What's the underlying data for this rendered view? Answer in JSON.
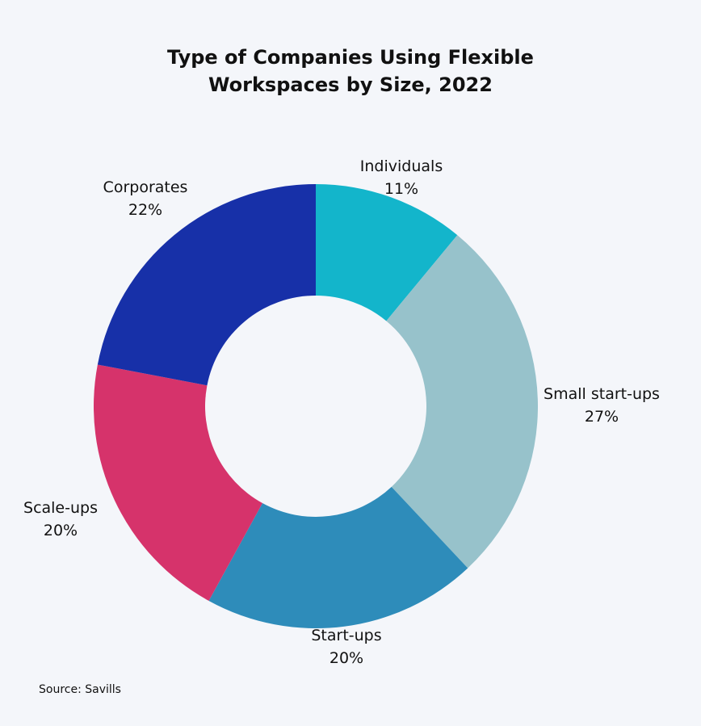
{
  "chart_data": {
    "type": "pie",
    "variant": "donut",
    "title": "Type of Companies Using Flexible Workspaces by Size, 2022",
    "title_lines": [
      "Type of Companies Using Flexible",
      "Workspaces by Size, 2022"
    ],
    "categories": [
      "Individuals",
      "Small start-ups",
      "Start-ups",
      "Scale-ups",
      "Corporates"
    ],
    "values": [
      11,
      27,
      20,
      20,
      22
    ],
    "value_labels": [
      "11%",
      "27%",
      "20%",
      "20%",
      "22%"
    ],
    "colors": [
      "#13b5cb",
      "#97c2cb",
      "#2e8cba",
      "#d6336b",
      "#1730a8"
    ],
    "start": "12 o'clock, clockwise",
    "legend": "none (labels beside slices)",
    "source": "Source: Savills"
  }
}
